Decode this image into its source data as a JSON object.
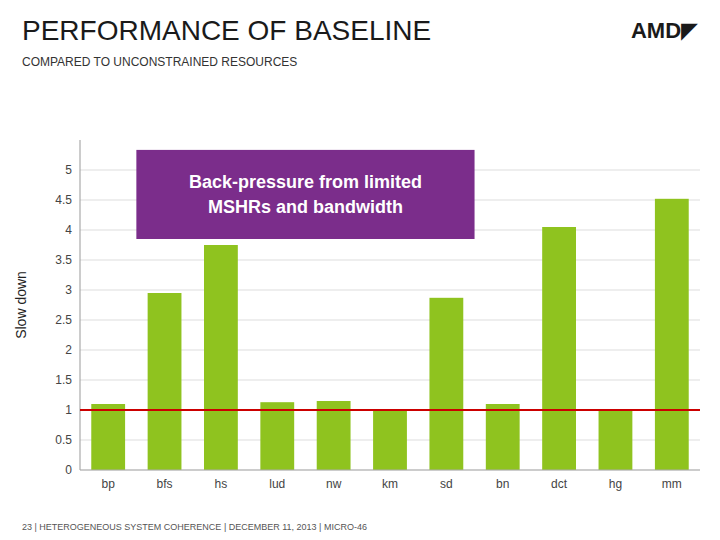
{
  "chart_data": {
    "type": "bar",
    "title": "PERFORMANCE OF BASELINE",
    "subtitle": "COMPARED TO UNCONSTRAINED RESOURCES",
    "y_label": "Slow down",
    "categories": [
      "bp",
      "bfs",
      "hs",
      "lud",
      "nw",
      "km",
      "sd",
      "bn",
      "dct",
      "hg",
      "mm"
    ],
    "values": [
      1.1,
      2.95,
      3.75,
      1.13,
      1.15,
      1.0,
      2.87,
      1.1,
      4.05,
      1.0,
      4.52
    ],
    "color": "#8fc31f",
    "ylim": [
      0,
      5.5
    ],
    "yticks": [
      0,
      0.5,
      1,
      1.5,
      2,
      2.5,
      3,
      3.5,
      4,
      4.5,
      5
    ],
    "grid": true,
    "reference_line": {
      "value": 1.0,
      "color": "#cc0000"
    },
    "annotations": [
      {
        "text": "Back-pressure from limited\nMSHRs and bandwidth",
        "color": "#7b2d8b"
      }
    ],
    "logo": "AMD◤",
    "footer": "23  |  HETEROGENEOUS SYSTEM COHERENCE  |  DECEMBER 11, 2013  |  MICRO-46"
  }
}
